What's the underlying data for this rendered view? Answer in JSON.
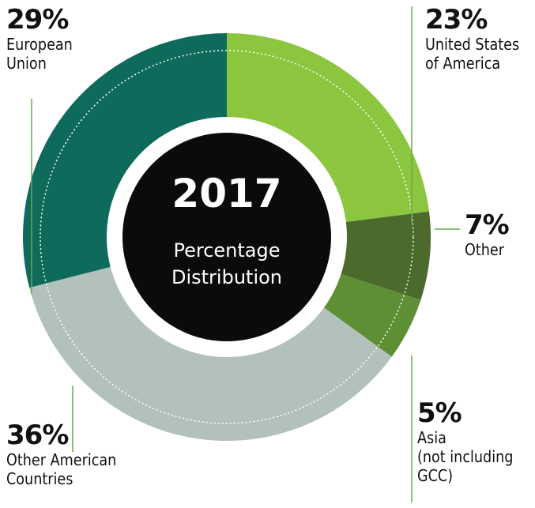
{
  "chart_data": {
    "type": "pie",
    "donut": true,
    "center_title": "2017",
    "center_subtitle": "Percentage\nDistribution",
    "categories": [
      "United States\nof America",
      "Other",
      "Asia\n(not including\nGCC)",
      "Other American\nCountries",
      "European\nUnion"
    ],
    "values": [
      23,
      7,
      5,
      36,
      29
    ],
    "value_labels": [
      "23%",
      "7%",
      "5%",
      "36%",
      "29%"
    ],
    "colors": [
      "#8cc63f",
      "#4b6a2c",
      "#5f8f34",
      "#b3c1bc",
      "#0e6a5a"
    ]
  }
}
